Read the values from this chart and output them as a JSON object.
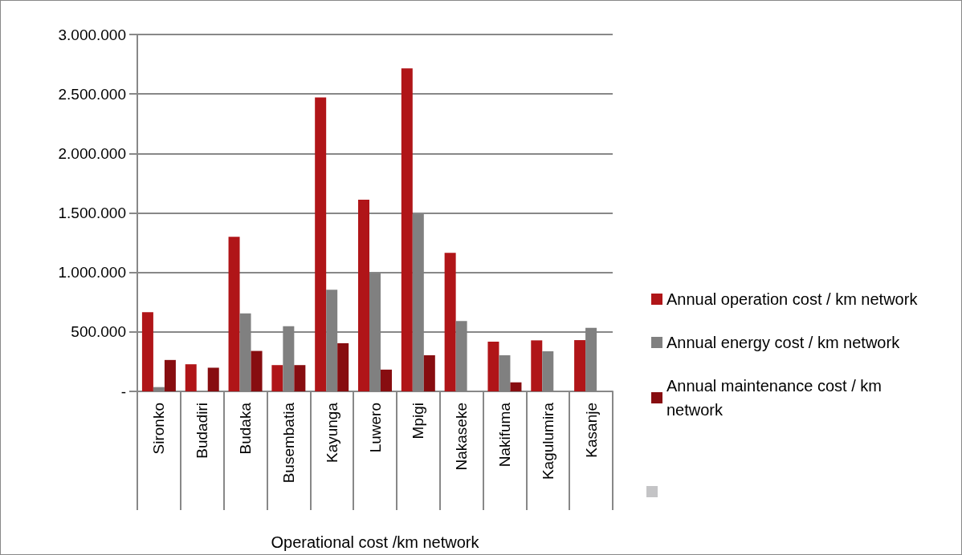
{
  "chart_data": {
    "type": "bar",
    "xlabel": "Operational cost /km network",
    "categories": [
      "Sironko",
      "Budadiri",
      "Budaka",
      "Busembatia",
      "Kayunga",
      "Luwero",
      "Mpigi",
      "Nakaseke",
      "Nakifuma",
      "Kagulumira",
      "Kasanje"
    ],
    "series": [
      {
        "name": "Annual operation cost / km network",
        "color": "#b01518",
        "values": [
          666000,
          228000,
          1299000,
          221000,
          2470000,
          1612000,
          2716000,
          1164000,
          418000,
          429000,
          431000
        ]
      },
      {
        "name": "Annual energy cost / km network",
        "color": "#808080",
        "values": [
          36000,
          null,
          655000,
          548000,
          854000,
          995000,
          1491000,
          592000,
          304000,
          337000,
          534000
        ]
      },
      {
        "name": "Annual maintenance cost / km network",
        "color": "#870d10",
        "values": [
          264000,
          199000,
          340000,
          221000,
          405000,
          183000,
          304000,
          null,
          76000,
          null,
          null
        ]
      }
    ],
    "ylim": [
      0,
      3000000
    ],
    "yticks": [
      {
        "value": 0,
        "label": "-"
      },
      {
        "value": 500000,
        "label": "500.000"
      },
      {
        "value": 1000000,
        "label": "1.000.000"
      },
      {
        "value": 1500000,
        "label": "1.500.000"
      },
      {
        "value": 2000000,
        "label": "2.000.000"
      },
      {
        "value": 2500000,
        "label": "2.500.000"
      },
      {
        "value": 3000000,
        "label": "3.000.000"
      }
    ],
    "grid": "y",
    "legend": "right"
  }
}
